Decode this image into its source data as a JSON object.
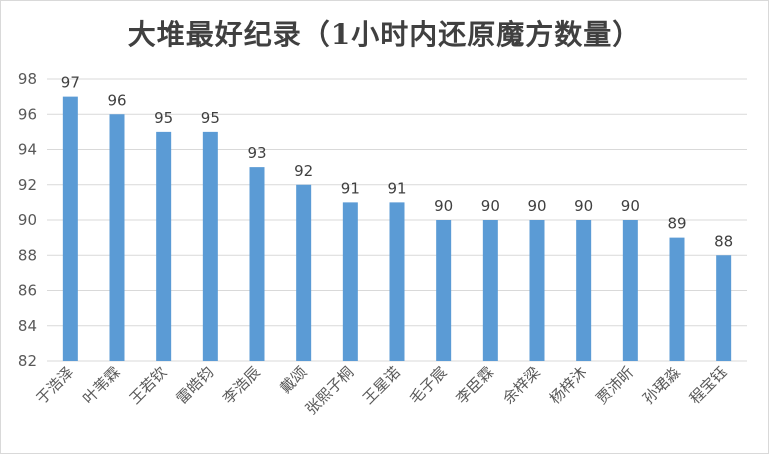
{
  "chart_data": {
    "type": "bar",
    "title": "大堆最好纪录（1小时内还原魔方数量）",
    "categories": [
      "于浩泽",
      "叶苇霖",
      "王若钦",
      "雷皓钧",
      "李浩辰",
      "戴颂",
      "张熙子桐",
      "王星诺",
      "毛子宸",
      "李臣霖",
      "余梓梁",
      "杨梓沐",
      "贾沛昕",
      "孙珺淼",
      "程宝钰"
    ],
    "values": [
      97,
      96,
      95,
      95,
      93,
      92,
      91,
      91,
      90,
      90,
      90,
      90,
      90,
      89,
      88
    ],
    "ylim": [
      82,
      98
    ],
    "yticks": [
      82,
      84,
      86,
      88,
      90,
      92,
      94,
      96,
      98
    ],
    "xlabel": "",
    "ylabel": "",
    "grid": true,
    "bar_color": "#5b9bd5",
    "grid_color": "#d9d9d9"
  }
}
